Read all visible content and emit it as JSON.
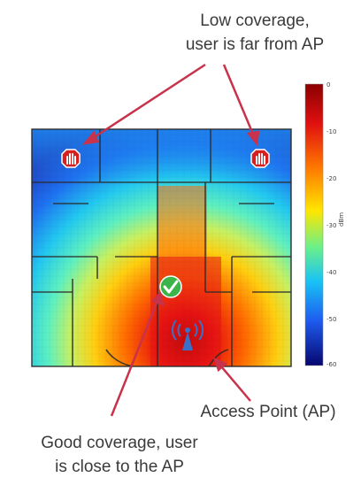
{
  "annotations": {
    "low_coverage": [
      "Low coverage,",
      "user is far from AP"
    ],
    "good_coverage": [
      "Good coverage, user",
      "is close to the AP"
    ],
    "access_point": "Access Point (AP)"
  },
  "colorbar": {
    "unit": "dBm",
    "ticks": [
      "0",
      "-10",
      "-20",
      "-30",
      "-40",
      "-50",
      "-60"
    ],
    "colors": [
      "#8b0000",
      "#e81010",
      "#ff7a00",
      "#ffe600",
      "#55f0a0",
      "#19c3f5",
      "#1e5cf0",
      "#06066e"
    ]
  },
  "markers": {
    "low_coverage_icon": "stop-hand-icon",
    "good_coverage_icon": "checkmark-icon",
    "access_point_icon": "wireless-antenna-icon"
  },
  "arrow_color": "#c8324a"
}
